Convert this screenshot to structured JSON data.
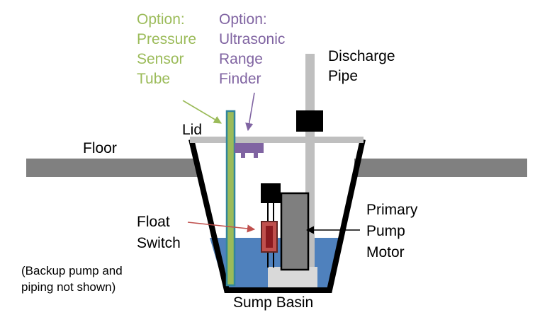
{
  "labels": {
    "pressure_sensor": [
      "Option:",
      "Pressure",
      "Sensor",
      "Tube"
    ],
    "ultrasonic": [
      "Option:",
      "Ultrasonic",
      "Range",
      "Finder"
    ],
    "discharge_pipe": [
      "Discharge",
      "Pipe"
    ],
    "lid": "Lid",
    "floor": "Floor",
    "float_switch": [
      "Float",
      "Switch"
    ],
    "primary_pump_motor": [
      "Primary",
      "Pump",
      "Motor"
    ],
    "backup_note": [
      "(Backup pump and",
      "piping not shown)"
    ],
    "sump_basin": "Sump Basin"
  },
  "colors": {
    "option_green": "#9BBB59",
    "option_purple": "#8064A2",
    "water": "#4F81BD",
    "pipe_gray": "#BFBFBF",
    "floor_gray": "#808080",
    "float_red": "#A3262E",
    "tube_teal": "#31859C"
  }
}
